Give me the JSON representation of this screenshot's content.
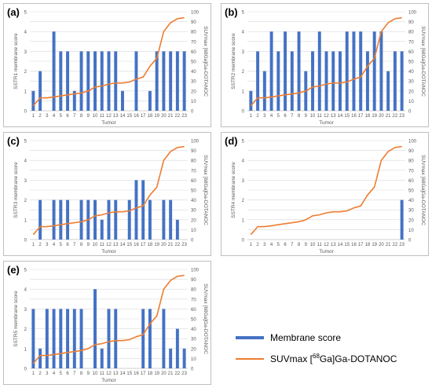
{
  "legend": {
    "bar_label": "Membrane score",
    "line_label_prefix": "SUVmax [",
    "line_label_sup": "68",
    "line_label_suffix": "Ga]Ga-DOTANOC"
  },
  "colors": {
    "bar": "#4472c4",
    "line": "#ed7d31",
    "grid": "#d9d9d9",
    "axis_text": "#595959"
  },
  "chart_data": [
    {
      "panel": "(a)",
      "type": "bar",
      "xlabel": "Tumor",
      "ylabel": "SSTR1 membrane score",
      "y2label": "SUVmax [68Ga]Ga-DOTANOC",
      "ylim": [
        0,
        5
      ],
      "y2lim": [
        0,
        100
      ],
      "categories": [
        "1",
        "2",
        "3",
        "4",
        "5",
        "6",
        "7",
        "8",
        "9",
        "10",
        "11",
        "12",
        "13",
        "14",
        "15",
        "16",
        "17",
        "18",
        "19",
        "20",
        "21",
        "22",
        "23"
      ],
      "bars": [
        1,
        2,
        0,
        4,
        3,
        3,
        1,
        3,
        3,
        3,
        3,
        3,
        3,
        1,
        0,
        3,
        0,
        1,
        3,
        3,
        3,
        3,
        3
      ],
      "line": [
        5,
        13,
        13,
        14,
        15,
        16,
        17,
        18,
        20,
        24,
        25,
        27,
        28,
        28,
        29,
        32,
        34,
        45,
        53,
        80,
        89,
        93,
        94
      ]
    },
    {
      "panel": "(b)",
      "type": "bar",
      "xlabel": "Tumor",
      "ylabel": "SSTR2 membrane score",
      "y2label": "SUVmax [68Ga]Ga-DOTANOC",
      "ylim": [
        0,
        5
      ],
      "y2lim": [
        0,
        100
      ],
      "categories": [
        "1",
        "2",
        "3",
        "4",
        "5",
        "6",
        "7",
        "8",
        "9",
        "10",
        "11",
        "12",
        "13",
        "14",
        "15",
        "16",
        "17",
        "18",
        "19",
        "20",
        "21",
        "22",
        "23"
      ],
      "bars": [
        1,
        3,
        2,
        4,
        3,
        4,
        3,
        4,
        2,
        3,
        4,
        3,
        3,
        3,
        4,
        4,
        4,
        3,
        4,
        4,
        2,
        3,
        3
      ],
      "line": [
        5,
        13,
        13,
        14,
        15,
        16,
        17,
        18,
        20,
        24,
        25,
        27,
        28,
        28,
        29,
        32,
        34,
        45,
        53,
        80,
        89,
        93,
        94
      ]
    },
    {
      "panel": "(c)",
      "type": "bar",
      "xlabel": "Tumor",
      "ylabel": "SSTR3 membrane score",
      "y2label": "SUVmax [68Ga]Ga-DOTANOC",
      "ylim": [
        0,
        5
      ],
      "y2lim": [
        0,
        100
      ],
      "categories": [
        "1",
        "2",
        "3",
        "4",
        "5",
        "6",
        "7",
        "8",
        "9",
        "10",
        "11",
        "12",
        "13",
        "14",
        "15",
        "16",
        "17",
        "18",
        "19",
        "20",
        "21",
        "22",
        "23"
      ],
      "bars": [
        0,
        2,
        0,
        2,
        2,
        2,
        0,
        2,
        2,
        2,
        1,
        2,
        2,
        0,
        2,
        3,
        3,
        2,
        0,
        2,
        2,
        1,
        0
      ],
      "line": [
        5,
        13,
        13,
        14,
        15,
        16,
        17,
        18,
        20,
        24,
        25,
        27,
        28,
        28,
        29,
        32,
        34,
        45,
        53,
        80,
        89,
        93,
        94
      ]
    },
    {
      "panel": "(d)",
      "type": "bar",
      "xlabel": "Tumor",
      "ylabel": "SSTR4 membrane score",
      "y2label": "SUVmax [68Ga]Ga-DOTANOC",
      "ylim": [
        0,
        5
      ],
      "y2lim": [
        0,
        100
      ],
      "categories": [
        "1",
        "2",
        "3",
        "4",
        "5",
        "6",
        "7",
        "8",
        "9",
        "10",
        "11",
        "12",
        "13",
        "14",
        "15",
        "16",
        "17",
        "18",
        "19",
        "20",
        "21",
        "22",
        "23"
      ],
      "bars": [
        0,
        0,
        0,
        0,
        0,
        0,
        0,
        0,
        0,
        0,
        0,
        0,
        0,
        0,
        0,
        0,
        0,
        0,
        0,
        0,
        0,
        0,
        2
      ],
      "line": [
        5,
        13,
        13,
        14,
        15,
        16,
        17,
        18,
        20,
        24,
        25,
        27,
        28,
        28,
        29,
        32,
        34,
        45,
        53,
        80,
        89,
        93,
        94
      ]
    },
    {
      "panel": "(e)",
      "type": "bar",
      "xlabel": "Tumor",
      "ylabel": "SSTR5 membrane score",
      "y2label": "SUVmax [68Ga]Ga-DOTANOC",
      "ylim": [
        0,
        5
      ],
      "y2lim": [
        0,
        100
      ],
      "categories": [
        "1",
        "2",
        "3",
        "4",
        "5",
        "6",
        "7",
        "8",
        "9",
        "10",
        "11",
        "12",
        "13",
        "14",
        "15",
        "16",
        "17",
        "18",
        "19",
        "20",
        "21",
        "22",
        "23"
      ],
      "bars": [
        3,
        1,
        3,
        3,
        3,
        3,
        3,
        3,
        0,
        4,
        1,
        3,
        3,
        0,
        0,
        0,
        3,
        3,
        0,
        3,
        1,
        2,
        1
      ],
      "line": [
        5,
        13,
        13,
        14,
        15,
        16,
        17,
        18,
        20,
        24,
        25,
        27,
        28,
        28,
        29,
        32,
        34,
        45,
        53,
        80,
        89,
        93,
        94
      ]
    }
  ]
}
